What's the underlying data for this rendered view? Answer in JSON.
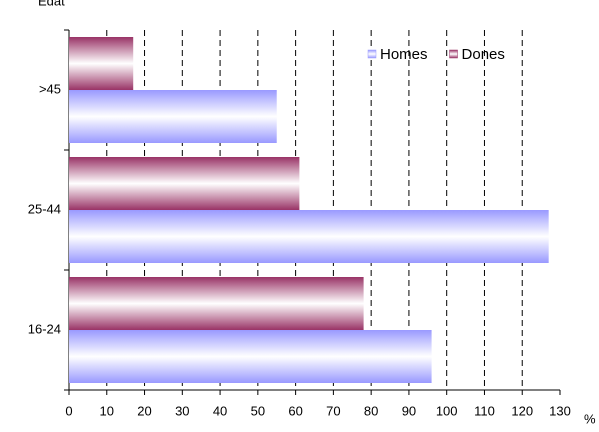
{
  "chart_data": {
    "type": "hbar",
    "y_label": "Edat",
    "x_label": "%",
    "categories": [
      "16-24",
      "25-44",
      ">45"
    ],
    "series": [
      {
        "name": "Homes",
        "color": "#9999ff",
        "values": [
          96,
          127,
          55
        ]
      },
      {
        "name": "Dones",
        "color": "#993366",
        "values": [
          78,
          61,
          17
        ]
      }
    ],
    "xlim": [
      0,
      130
    ],
    "xticks": [
      0,
      10,
      20,
      30,
      40,
      50,
      60,
      70,
      80,
      90,
      100,
      110,
      120,
      130
    ],
    "grid": true,
    "legend": "top-right"
  }
}
